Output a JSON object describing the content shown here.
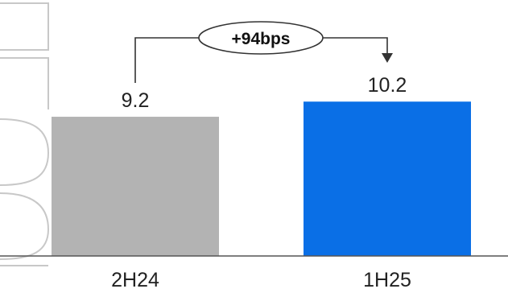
{
  "chart_data": {
    "type": "bar",
    "categories": [
      "2H24",
      "1H25"
    ],
    "values": [
      9.2,
      10.2
    ],
    "value_labels": [
      "9.2",
      "10.2"
    ],
    "colors": [
      "#b3b3b3",
      "#0a6fe6"
    ],
    "change_annotation": "+94bps",
    "title": "",
    "xlabel": "",
    "ylabel": ""
  }
}
